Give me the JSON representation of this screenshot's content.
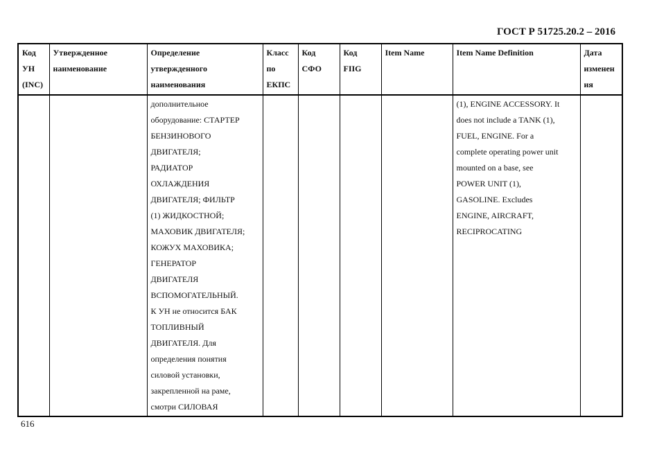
{
  "document_id": "ГОСТ Р 51725.20.2 – 2016",
  "page_number": "616",
  "table": {
    "headers": [
      [
        "Код",
        "УН",
        "(INC)"
      ],
      [
        "Утвержденное",
        "наименование"
      ],
      [
        "Определение",
        "утвержденного",
        "наименования"
      ],
      [
        "Класс",
        "по",
        "ЕКПС"
      ],
      [
        "Код",
        "СФО"
      ],
      [
        "Код",
        "FIIG"
      ],
      [
        "Item Name"
      ],
      [
        "Item Name Definition"
      ],
      [
        "Дата",
        "изменен",
        "ия"
      ]
    ],
    "row": {
      "definition_ru": [
        "дополнительное",
        "оборудование: СТАРТЕР",
        "БЕНЗИНОВОГО",
        "ДВИГАТЕЛЯ;",
        "РАДИАТОР",
        "ОХЛАЖДЕНИЯ",
        "ДВИГАТЕЛЯ; ФИЛЬТР",
        "(1) ЖИДКОСТНОЙ;",
        "МАХОВИК ДВИГАТЕЛЯ;",
        "КОЖУХ МАХОВИКА;",
        "ГЕНЕРАТОР",
        "ДВИГАТЕЛЯ",
        "ВСПОМОГАТЕЛЬНЫЙ.",
        "К УН не относится БАК",
        "ТОПЛИВНЫЙ",
        "ДВИГАТЕЛЯ. Для",
        "определения понятия",
        "силовой установки,",
        "закрепленной на раме,",
        "смотри СИЛОВАЯ"
      ],
      "definition_en": [
        "(1), ENGINE ACCESSORY. It",
        "does not include a TANK (1),",
        "FUEL, ENGINE. For a",
        "complete operating power unit",
        "mounted on a base, see",
        "POWER UNIT (1),",
        "GASOLINE. Excludes",
        "ENGINE, AIRCRAFT,",
        "RECIPROCATING"
      ]
    }
  }
}
